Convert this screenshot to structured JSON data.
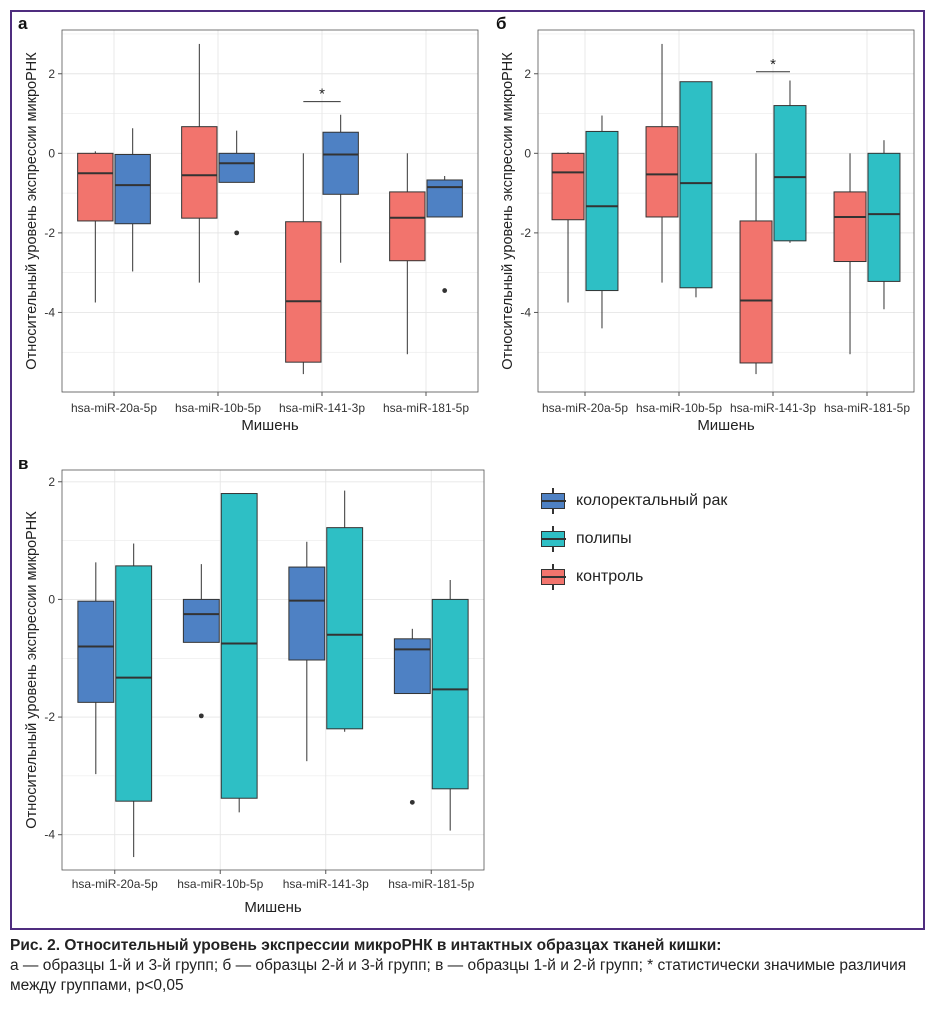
{
  "colors": {
    "frame": "#4f2d7f",
    "kolorektalnyi_rak": "#4e81c4",
    "polipy": "#2ebfc5",
    "kontrol": "#f2746d"
  },
  "panels": {
    "a": {
      "letter": "а"
    },
    "b": {
      "letter": "б"
    },
    "v": {
      "letter": "в"
    }
  },
  "legend": [
    {
      "label": "колоректальный рак",
      "color": "#4e81c4"
    },
    {
      "label": "полипы",
      "color": "#2ebfc5"
    },
    {
      "label": "контроль",
      "color": "#f2746d"
    }
  ],
  "caption": {
    "title": "Рис. 2. Относительный уровень экспрессии микроРНК в интактных образцах тканей кишки:",
    "text": "а — образцы 1-й и 3-й групп; б — образцы 2-й и 3-й групп; в — образцы 1-й и 2-й групп; * статистически значимые различия между группами, p<0,05"
  },
  "chart_data": [
    {
      "panel": "а",
      "type": "box",
      "xlabel": "Мишень",
      "ylabel": "Относительный уровень экспрессии микроРНК",
      "categories": [
        "hsa-miR-20a-5p",
        "hsa-miR-10b-5p",
        "hsa-miR-141-3p",
        "hsa-miR-181-5p"
      ],
      "y_ticks": [
        2,
        0,
        -2,
        -4
      ],
      "ylim": [
        -6,
        3.1
      ],
      "grid": true,
      "series": [
        {
          "name": "контроль",
          "color": "#f2746d",
          "boxes": [
            {
              "min": -3.75,
              "q1": -1.7,
              "median": -0.5,
              "q3": 0.0,
              "max": 0.05,
              "outliers": []
            },
            {
              "min": -3.25,
              "q1": -1.63,
              "median": -0.55,
              "q3": 0.67,
              "max": 2.75,
              "outliers": []
            },
            {
              "min": -5.55,
              "q1": -5.25,
              "median": -3.72,
              "q3": -1.72,
              "max": 0.0,
              "outliers": []
            },
            {
              "min": -5.05,
              "q1": -2.7,
              "median": -1.62,
              "q3": -0.97,
              "max": 0.0,
              "outliers": []
            }
          ]
        },
        {
          "name": "колоректальный рак",
          "color": "#4e81c4",
          "boxes": [
            {
              "min": -2.97,
              "q1": -1.77,
              "median": -0.8,
              "q3": -0.03,
              "max": 0.63,
              "outliers": []
            },
            {
              "min": -0.73,
              "q1": -0.73,
              "median": -0.25,
              "q3": 0.0,
              "max": 0.57,
              "outliers": [
                -2.0
              ]
            },
            {
              "min": -2.75,
              "q1": -1.03,
              "median": -0.03,
              "q3": 0.53,
              "max": 0.97,
              "outliers": []
            },
            {
              "min": -1.6,
              "q1": -1.6,
              "median": -0.85,
              "q3": -0.67,
              "max": -0.57,
              "outliers": [
                -3.45
              ]
            }
          ]
        }
      ],
      "annotations": [
        {
          "category": "hsa-miR-141-3p",
          "text": "*",
          "y": 1.3
        }
      ]
    },
    {
      "panel": "б",
      "type": "box",
      "xlabel": "Мишень",
      "ylabel": "Относительный уровень экспрессии микроРНК",
      "categories": [
        "hsa-miR-20a-5p",
        "hsa-miR-10b-5p",
        "hsa-miR-141-3p",
        "hsa-miR-181-5p"
      ],
      "y_ticks": [
        2,
        0,
        -2,
        -4
      ],
      "ylim": [
        -6,
        3.1
      ],
      "grid": true,
      "series": [
        {
          "name": "контроль",
          "color": "#f2746d",
          "boxes": [
            {
              "min": -3.75,
              "q1": -1.67,
              "median": -0.48,
              "q3": 0.0,
              "max": 0.03,
              "outliers": []
            },
            {
              "min": -3.25,
              "q1": -1.6,
              "median": -0.53,
              "q3": 0.67,
              "max": 2.75,
              "outliers": []
            },
            {
              "min": -5.55,
              "q1": -5.27,
              "median": -3.7,
              "q3": -1.7,
              "max": 0.0,
              "outliers": []
            },
            {
              "min": -5.05,
              "q1": -2.72,
              "median": -1.6,
              "q3": -0.97,
              "max": 0.0,
              "outliers": []
            }
          ]
        },
        {
          "name": "полипы",
          "color": "#2ebfc5",
          "boxes": [
            {
              "min": -4.4,
              "q1": -3.45,
              "median": -1.33,
              "q3": 0.55,
              "max": 0.95,
              "outliers": []
            },
            {
              "min": -3.62,
              "q1": -3.38,
              "median": -0.75,
              "q3": 1.8,
              "max": 1.8,
              "outliers": []
            },
            {
              "min": -2.25,
              "q1": -2.2,
              "median": -0.6,
              "q3": 1.2,
              "max": 1.83,
              "outliers": []
            },
            {
              "min": -3.92,
              "q1": -3.22,
              "median": -1.53,
              "q3": 0.0,
              "max": 0.33,
              "outliers": []
            }
          ]
        }
      ],
      "annotations": [
        {
          "category": "hsa-miR-141-3p",
          "text": "*",
          "y": 2.05
        }
      ]
    },
    {
      "panel": "в",
      "type": "box",
      "xlabel": "Мишень",
      "ylabel": "Относительный уровень экспрессии микроРНК",
      "categories": [
        "hsa-miR-20a-5p",
        "hsa-miR-10b-5p",
        "hsa-miR-141-3p",
        "hsa-miR-181-5p"
      ],
      "y_ticks": [
        2,
        0,
        -2,
        -4
      ],
      "ylim": [
        -4.6,
        2.2
      ],
      "grid": true,
      "series": [
        {
          "name": "колоректальный рак",
          "color": "#4e81c4",
          "boxes": [
            {
              "min": -2.97,
              "q1": -1.75,
              "median": -0.8,
              "q3": -0.03,
              "max": 0.63,
              "outliers": []
            },
            {
              "min": -0.73,
              "q1": -0.73,
              "median": -0.25,
              "q3": 0.0,
              "max": 0.6,
              "outliers": [
                -1.98
              ]
            },
            {
              "min": -2.75,
              "q1": -1.03,
              "median": -0.02,
              "q3": 0.55,
              "max": 0.98,
              "outliers": []
            },
            {
              "min": -1.6,
              "q1": -1.6,
              "median": -0.85,
              "q3": -0.67,
              "max": -0.5,
              "outliers": [
                -3.45
              ]
            }
          ]
        },
        {
          "name": "полипы",
          "color": "#2ebfc5",
          "boxes": [
            {
              "min": -4.38,
              "q1": -3.43,
              "median": -1.33,
              "q3": 0.57,
              "max": 0.95,
              "outliers": []
            },
            {
              "min": -3.62,
              "q1": -3.38,
              "median": -0.75,
              "q3": 1.8,
              "max": 1.8,
              "outliers": []
            },
            {
              "min": -2.25,
              "q1": -2.2,
              "median": -0.6,
              "q3": 1.22,
              "max": 1.85,
              "outliers": []
            },
            {
              "min": -3.93,
              "q1": -3.22,
              "median": -1.53,
              "q3": 0.0,
              "max": 0.33,
              "outliers": []
            }
          ]
        }
      ],
      "annotations": []
    }
  ]
}
